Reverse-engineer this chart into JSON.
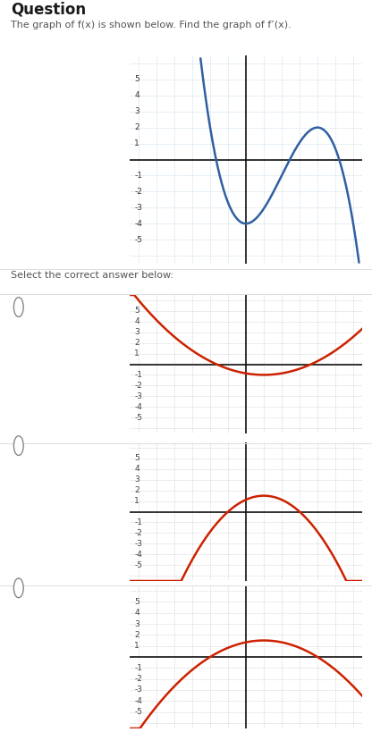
{
  "title": "Question",
  "subtitle": "The graph of f(x) is shown below. Find the graph of f’(x).",
  "answer_label": "Select the correct answer below:",
  "curve_color_main": "#3060a0",
  "curve_color_answer": "#cc2200",
  "grid_color_main": "#90b8d8",
  "grid_color_ans": "#aaaaaa",
  "axis_color": "#111111",
  "tick_color_main": "#333333",
  "tick_color_ans": "#444444",
  "radio_color": "#888888",
  "divider_color": "#dddddd",
  "title_fontsize": 12,
  "subtitle_fontsize": 8,
  "answer_label_fontsize": 8,
  "tick_fontsize": 6.5,
  "main_a": -0.1875,
  "main_b": 1.125,
  "main_c": 0.0,
  "main_d": -4.0,
  "main_xstart": -4.5,
  "xlim": [
    -6.5,
    6.5
  ],
  "ylim": [
    -6.5,
    6.5
  ]
}
